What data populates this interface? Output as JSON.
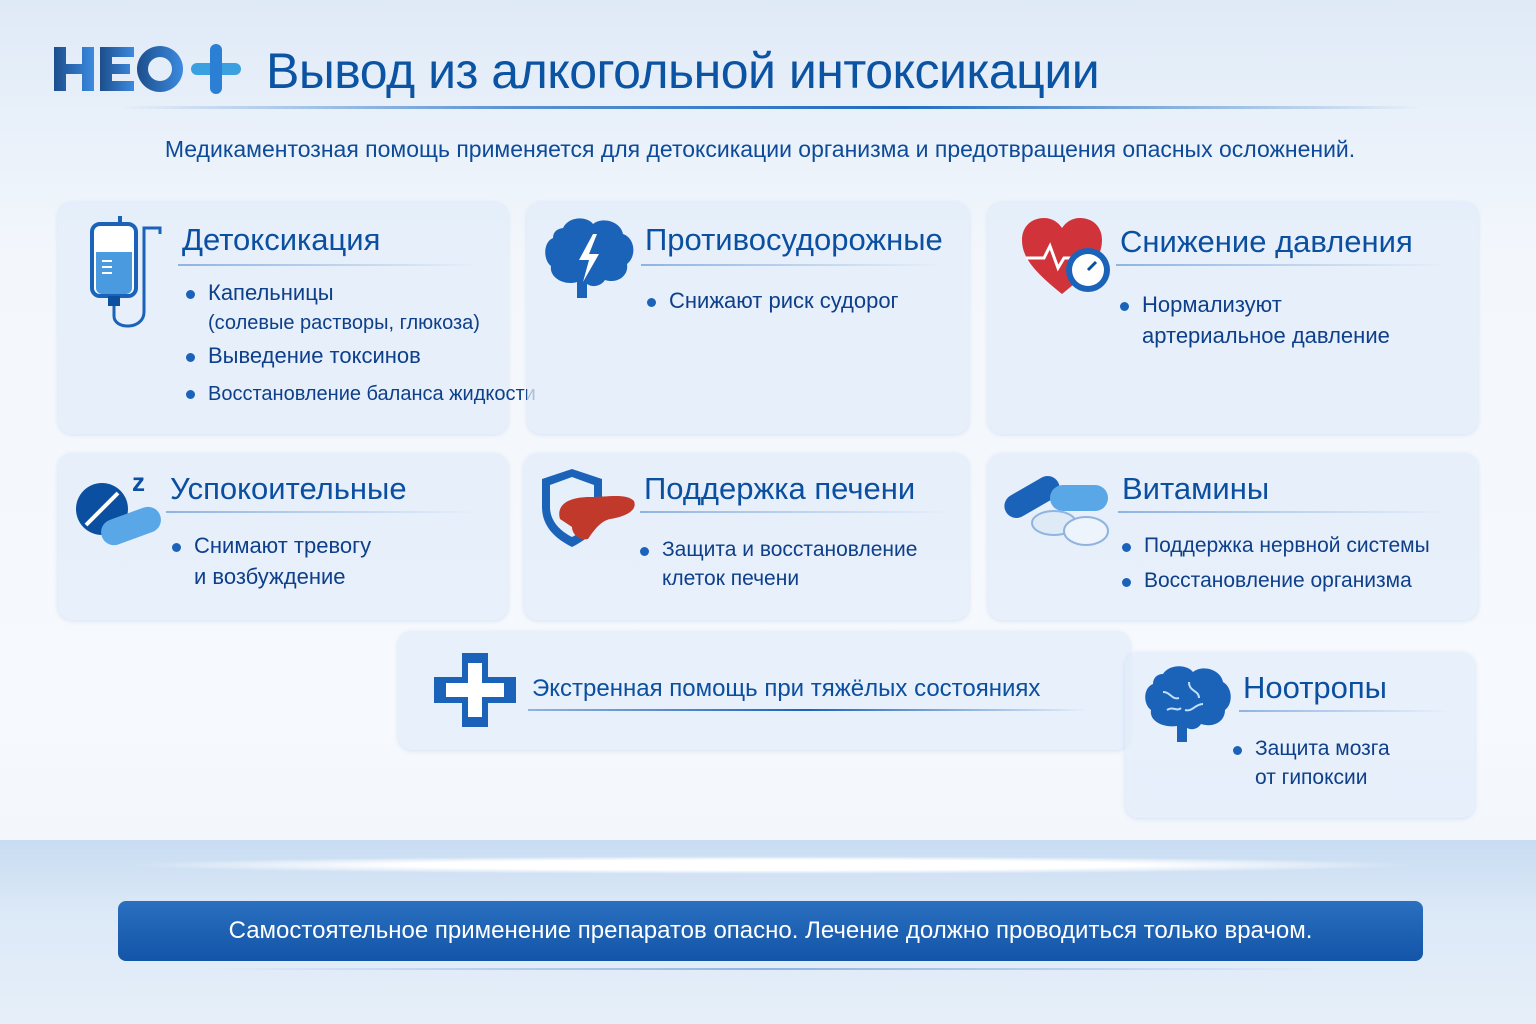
{
  "header": {
    "logo_text": "НЕО+",
    "title": "Вывод из алкогольной интоксикации",
    "subtitle": "Медикаментозная помощь применяется для детоксикации организма и предотвращения опасных осложнений."
  },
  "cards": [
    {
      "title": "Детоксикация",
      "icon": "iv-drip-icon",
      "items": [
        "Капельницы",
        "(солевые растворы, глюкоза)",
        "Выведение токсинов",
        "Восстановление баланса жидкости"
      ]
    },
    {
      "title": "Противосудорожные",
      "icon": "brain-lightning-icon",
      "items": [
        "Снижают риск судорог"
      ]
    },
    {
      "title": "Снижение давления",
      "icon": "heart-gauge-icon",
      "items": [
        "Нормализуют",
        "артериальное давление"
      ]
    },
    {
      "title": "Успокоительные",
      "icon": "sleep-pills-icon",
      "items": [
        "Снимают тревогу",
        "и возбуждение"
      ]
    },
    {
      "title": "Поддержка печени",
      "icon": "liver-shield-icon",
      "items": [
        "Защита и восстановление",
        "клеток печени"
      ]
    },
    {
      "title": "Витамины",
      "icon": "capsules-icon",
      "items": [
        "Поддержка нервной системы",
        "Восстановление организма"
      ]
    }
  ],
  "emergency": {
    "title": "Экстренная помощь при тяжёлых состояниях",
    "icon": "medical-cross-icon"
  },
  "nootropics": {
    "title": "Ноотропы",
    "icon": "brain-icon",
    "items": [
      "Защита мозга",
      "от гипоксии"
    ]
  },
  "footer": {
    "warning": "Самостоятельное применение препаратов опасно. Лечение должно проводиться только врачом."
  },
  "colors": {
    "primary": "#0b53a3",
    "text": "#0d3f8a",
    "banner": "#1a5fb0",
    "accent_red": "#d0343a"
  }
}
